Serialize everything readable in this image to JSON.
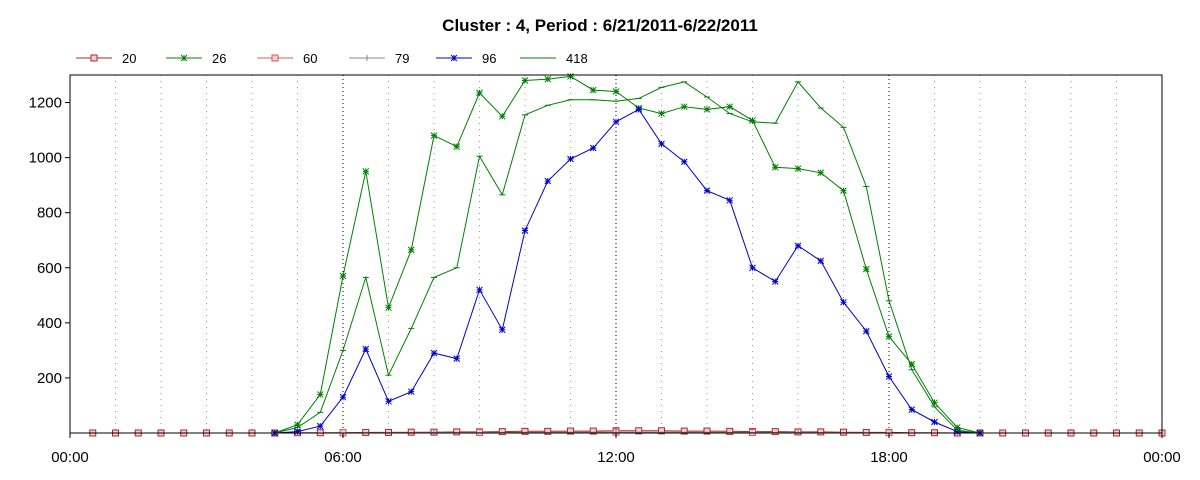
{
  "chart_data": {
    "type": "line",
    "title": "Cluster : 4, Period : 6/21/2011-6/22/2011",
    "xlabel": "",
    "ylabel": "",
    "x_unit": "hours",
    "xlim": [
      0,
      24
    ],
    "ylim": [
      0,
      1300
    ],
    "x_ticks": [
      {
        "value": 0,
        "label": "00:00"
      },
      {
        "value": 6,
        "label": "06:00"
      },
      {
        "value": 12,
        "label": "12:00"
      },
      {
        "value": 18,
        "label": "18:00"
      },
      {
        "value": 24,
        "label": "00:00"
      }
    ],
    "y_ticks": [
      200,
      400,
      600,
      800,
      1000,
      1200
    ],
    "grid": {
      "vertical_dotted_hours": true,
      "horizontal": false
    },
    "legend_position": "top-left",
    "series": [
      {
        "name": "20",
        "color": "#a52a2a",
        "marker": "square",
        "x": [
          0.5,
          1,
          1.5,
          2,
          2.5,
          3,
          3.5,
          4,
          4.5,
          5,
          5.5,
          6,
          6.5,
          7,
          7.5,
          8,
          8.5,
          9,
          9.5,
          10,
          10.5,
          11,
          11.5,
          12,
          12.5,
          13,
          13.5,
          14,
          14.5,
          15,
          15.5,
          16,
          16.5,
          17,
          17.5,
          18,
          18.5,
          19,
          19.5,
          20,
          20.5,
          21,
          21.5,
          22,
          22.5,
          23,
          23.5,
          24
        ],
        "y": [
          0,
          0,
          0,
          0,
          0,
          0,
          0,
          0,
          0,
          1,
          1,
          1,
          2,
          2,
          3,
          3,
          4,
          4,
          5,
          6,
          6,
          7,
          7,
          8,
          8,
          8,
          7,
          7,
          6,
          5,
          5,
          4,
          4,
          3,
          2,
          2,
          1,
          1,
          0,
          0,
          0,
          0,
          0,
          0,
          0,
          0,
          0,
          0
        ]
      },
      {
        "name": "26",
        "color": "#008000",
        "marker": "asterisk",
        "x": [
          4.5,
          5,
          5.5,
          6,
          6.5,
          7,
          7.5,
          8,
          8.5,
          9,
          9.5,
          10,
          10.5,
          11,
          11.5,
          12,
          12.5,
          13,
          13.5,
          14,
          14.5,
          15,
          15.5,
          16,
          16.5,
          17,
          17.5,
          18,
          18.5,
          19,
          19.5,
          20
        ],
        "y": [
          0,
          30,
          140,
          570,
          950,
          455,
          665,
          1080,
          1040,
          1235,
          1150,
          1280,
          1285,
          1295,
          1245,
          1240,
          1180,
          1160,
          1185,
          1175,
          1185,
          1135,
          965,
          960,
          945,
          880,
          595,
          350,
          250,
          110,
          20,
          0
        ]
      },
      {
        "name": "60",
        "color": "#cd5c5c",
        "marker": "square",
        "x": [
          6,
          9,
          12,
          15,
          18
        ],
        "y": [
          1,
          2,
          3,
          2,
          1
        ]
      },
      {
        "name": "79",
        "color": "#888888",
        "marker": "plus",
        "x": [
          8,
          12,
          16
        ],
        "y": [
          1,
          2,
          1
        ]
      },
      {
        "name": "96",
        "color": "#0000cc",
        "marker": "asterisk",
        "x": [
          4.5,
          5,
          5.5,
          6,
          6.5,
          7,
          7.5,
          8,
          8.5,
          9,
          9.5,
          10,
          10.5,
          11,
          11.5,
          12,
          12.5,
          13,
          13.5,
          14,
          14.5,
          15,
          15.5,
          16,
          16.5,
          17,
          17.5,
          18,
          18.5,
          19,
          19.5,
          20
        ],
        "y": [
          0,
          5,
          25,
          130,
          305,
          115,
          150,
          290,
          270,
          520,
          375,
          735,
          915,
          995,
          1035,
          1130,
          1175,
          1050,
          985,
          880,
          845,
          600,
          550,
          680,
          625,
          475,
          370,
          205,
          85,
          40,
          5,
          0
        ]
      },
      {
        "name": "418",
        "color": "#008000",
        "marker": "dash",
        "x": [
          4.5,
          5,
          5.5,
          6,
          6.5,
          7,
          7.5,
          8,
          8.5,
          9,
          9.5,
          10,
          10.5,
          11,
          11.5,
          12,
          12.5,
          13,
          13.5,
          14,
          14.5,
          15,
          15.5,
          16,
          16.5,
          17,
          17.5,
          18,
          18.5,
          19,
          19.5,
          20
        ],
        "y": [
          0,
          20,
          75,
          300,
          565,
          210,
          380,
          565,
          600,
          1005,
          865,
          1155,
          1190,
          1210,
          1210,
          1205,
          1215,
          1255,
          1275,
          1220,
          1160,
          1130,
          1125,
          1275,
          1180,
          1110,
          895,
          480,
          230,
          95,
          10,
          0
        ]
      }
    ]
  }
}
